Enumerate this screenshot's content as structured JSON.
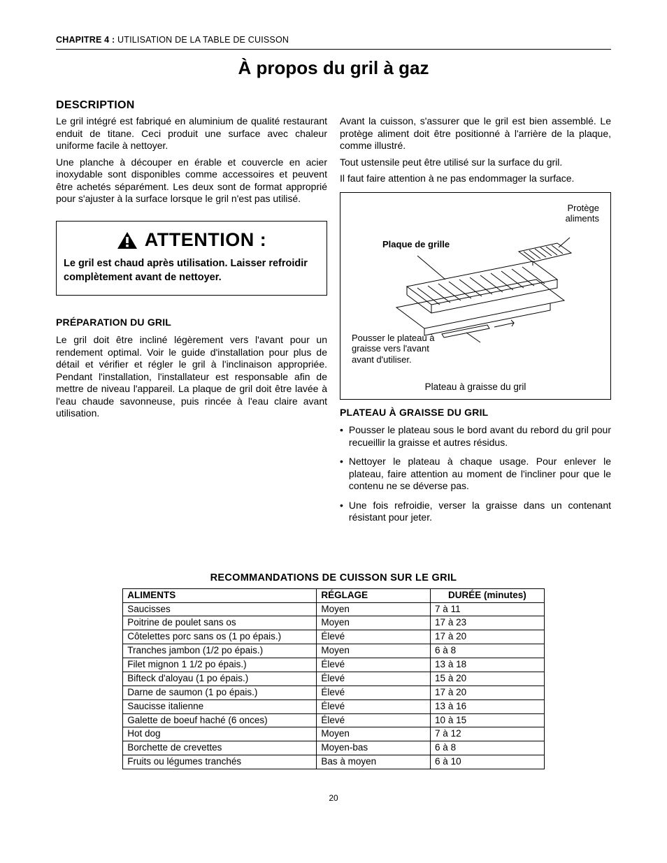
{
  "chapter": {
    "num": "CHAPITRE 4 :",
    "title": "UTILISATION DE LA TABLE DE CUISSON"
  },
  "page_title": "À propos du gril à gaz",
  "description": {
    "heading": "DESCRIPTION",
    "left_p1": "Le gril intégré est fabriqué en aluminium de qualité restaurant enduit de titane. Ceci produit une surface avec chaleur uniforme facile à nettoyer.",
    "left_p2": "Une planche à découper en érable et couvercle en acier inoxydable sont disponibles comme accessoires et peuvent être achetés séparément. Les deux sont de format approprié pour s'ajuster à la surface lorsque le gril n'est pas utilisé.",
    "right_p1": "Avant la cuisson, s'assurer que le gril est bien assemblé. Le protège aliment doit être positionné à l'arrière de la plaque, comme illustré.",
    "right_p2": "Tout ustensile peut être utilisé sur la surface du gril.",
    "right_p3": "Il faut faire attention à ne pas endommager la surface."
  },
  "attention": {
    "label": "ATTENTION :",
    "body": "Le gril est chaud après utilisation. Laisser refroidir complètement avant de nettoyer."
  },
  "prep": {
    "heading": "PRÉPARATION DU GRIL",
    "body": "Le gril doit être incliné légèrement vers l'avant pour un rendement optimal. Voir le guide d'installation pour plus de détail et vérifier et régler le gril à l'inclinaison appropriée. Pendant l'installation, l'installateur est responsable afin de mettre de niveau l'appareil. La plaque de gril doit être lavée à l'eau chaude savonneuse, puis rincée à l'eau claire avant utilisation."
  },
  "diagram": {
    "plate_label": "Plaque de grille",
    "guard_label": "Protège\naliments",
    "push_label": "Pousser le plateau à\ngraisse vers l'avant\navant d'utiliser.",
    "caption": "Plateau à graisse du gril"
  },
  "tray": {
    "heading": "PLATEAU À GRAISSE DU GRIL",
    "b1": "Pousser le plateau sous le bord avant du rebord du gril pour recueillir la graisse et autres résidus.",
    "b2": "Nettoyer le plateau à chaque usage. Pour enlever le plateau, faire attention au moment de l'incliner pour que le contenu ne se déverse pas.",
    "b3": "Une fois refroidie, verser la graisse dans un contenant résistant pour jeter."
  },
  "table": {
    "title": "RECOMMANDATIONS DE CUISSON SUR LE GRIL",
    "headers": {
      "food": "ALIMENTS",
      "setting": "RÉGLAGE",
      "time": "DURÉE (minutes)"
    },
    "rows": [
      {
        "food": "Saucisses",
        "setting": "Moyen",
        "time": "7 à 11"
      },
      {
        "food": "Poitrine de poulet sans os",
        "setting": "Moyen",
        "time": "17 à 23"
      },
      {
        "food": "Côtelettes porc sans os (1 po épais.)",
        "setting": "Élevé",
        "time": "17 à 20"
      },
      {
        "food": "Tranches jambon (1/2 po épais.)",
        "setting": "Moyen",
        "time": "6 à 8"
      },
      {
        "food": "Filet mignon 1 1/2 po épais.)",
        "setting": "Élevé",
        "time": "13 à 18"
      },
      {
        "food": "Bifteck d'aloyau (1 po épais.)",
        "setting": "Élevé",
        "time": "15 à 20"
      },
      {
        "food": "Darne de saumon (1 po épais.)",
        "setting": "Élevé",
        "time": "17 à 20"
      },
      {
        "food": "Saucisse italienne",
        "setting": "Élevé",
        "time": "13 à 16"
      },
      {
        "food": "Galette de boeuf haché (6 onces)",
        "setting": "Élevé",
        "time": "10 à 15"
      },
      {
        "food": "Hot dog",
        "setting": "Moyen",
        "time": "7 à 12"
      },
      {
        "food": "Borchette de crevettes",
        "setting": "Moyen-bas",
        "time": "6 à 8"
      },
      {
        "food": "Fruits ou légumes tranchés",
        "setting": "Bas à moyen",
        "time": "6 à 10"
      }
    ]
  },
  "page_number": "20",
  "colors": {
    "text": "#000000",
    "bg": "#ffffff",
    "border": "#000000"
  }
}
